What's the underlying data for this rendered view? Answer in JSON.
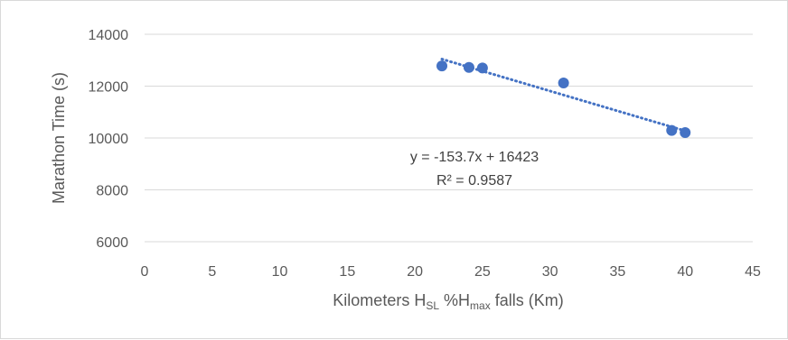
{
  "chart_data": {
    "type": "scatter",
    "title": "",
    "xlabel": "Kilometers H",
    "xlabel_sub1": "SL",
    "xlabel_mid": " %H",
    "xlabel_sub2": "max",
    "xlabel_tail": " falls (Km)",
    "ylabel": "Marathon Time (s)",
    "xlim": [
      0,
      45
    ],
    "ylim": [
      6000,
      14000
    ],
    "x_ticks": [
      "0",
      "5",
      "10",
      "15",
      "20",
      "25",
      "30",
      "35",
      "40",
      "45"
    ],
    "y_ticks": [
      "6000",
      "8000",
      "10000",
      "12000",
      "14000"
    ],
    "grid": "horizontal",
    "legend": "none",
    "series": [
      {
        "color": "#4472c4",
        "points": [
          {
            "x": 22,
            "y": 12780
          },
          {
            "x": 24,
            "y": 12720
          },
          {
            "x": 25,
            "y": 12700
          },
          {
            "x": 31,
            "y": 12120
          },
          {
            "x": 39,
            "y": 10290
          },
          {
            "x": 40,
            "y": 10210
          }
        ]
      }
    ],
    "trendline": {
      "type": "linear",
      "slope": -153.7,
      "intercept": 16423,
      "x_range": [
        22,
        40
      ],
      "style": "dotted",
      "color": "#4472c4",
      "equation": "y = -153.7x + 16423",
      "r_squared": "R² = 0.9587"
    }
  }
}
